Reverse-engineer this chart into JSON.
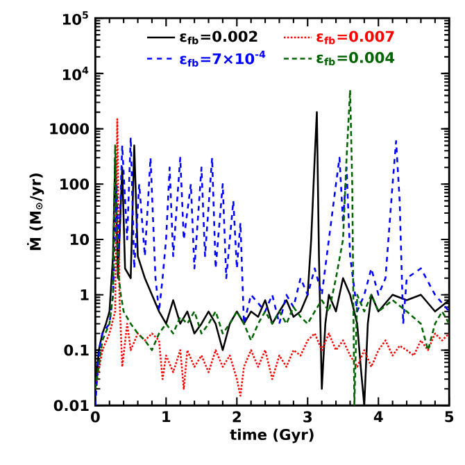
{
  "chart_data": {
    "type": "line",
    "xlabel": "time (Gyr)",
    "ylabel": "Ṁ (M$_{⊙}$/yr)",
    "log": "y",
    "xlim": [
      0,
      5
    ],
    "xticks": [
      0,
      1,
      2,
      3,
      4,
      5
    ],
    "ylim": [
      0.01,
      100000
    ],
    "yticks": [
      0.01,
      0.1,
      1,
      10,
      100,
      1000,
      {
        "value": 10000,
        "label": "10$^{4}$"
      },
      {
        "value": 100000,
        "label": "10$^{5}$"
      }
    ],
    "legend": "top",
    "series": [
      {
        "name": "ε$_{fb}$=0.002",
        "color": "#000000",
        "line_style": "solid",
        "x": [
          0,
          0.05,
          0.1,
          0.15,
          0.2,
          0.25,
          0.28,
          0.32,
          0.38,
          0.42,
          0.5,
          0.55,
          0.6,
          0.7,
          0.8,
          0.9,
          1.0,
          1.1,
          1.2,
          1.3,
          1.4,
          1.5,
          1.6,
          1.7,
          1.8,
          1.9,
          2.0,
          2.1,
          2.2,
          2.3,
          2.4,
          2.5,
          2.6,
          2.7,
          2.8,
          2.9,
          3.0,
          3.05,
          3.1,
          3.13,
          3.16,
          3.2,
          3.25,
          3.3,
          3.4,
          3.5,
          3.6,
          3.7,
          3.75,
          3.8,
          3.85,
          3.9,
          4.0,
          4.2,
          4.4,
          4.6,
          4.8,
          5.0
        ],
        "values": [
          0.02,
          0.1,
          0.2,
          0.3,
          0.5,
          5,
          300,
          2,
          200,
          3,
          2,
          500,
          5,
          2,
          1,
          0.5,
          0.3,
          0.8,
          0.3,
          0.5,
          0.2,
          0.3,
          0.5,
          0.3,
          0.1,
          0.3,
          0.5,
          0.3,
          0.5,
          0.4,
          0.8,
          0.3,
          0.5,
          0.8,
          0.4,
          0.5,
          1,
          10,
          300,
          2000,
          5,
          0.02,
          0.3,
          1,
          0.5,
          2,
          1,
          0.3,
          0.05,
          0.01,
          0.3,
          1,
          0.5,
          1,
          0.8,
          1,
          0.5,
          0.8
        ]
      },
      {
        "name": "ε$_{fb}$=0.007",
        "color": "#ff0000",
        "line_style": "dotted",
        "x": [
          0,
          0.1,
          0.2,
          0.28,
          0.31,
          0.34,
          0.38,
          0.45,
          0.5,
          0.6,
          0.7,
          0.8,
          0.9,
          0.95,
          1.0,
          1.1,
          1.2,
          1.25,
          1.3,
          1.4,
          1.5,
          1.6,
          1.7,
          1.8,
          1.9,
          2.0,
          2.05,
          2.1,
          2.2,
          2.3,
          2.4,
          2.5,
          2.6,
          2.7,
          2.8,
          2.9,
          3.0,
          3.1,
          3.2,
          3.3,
          3.4,
          3.5,
          3.6,
          3.7,
          3.8,
          3.9,
          4.0,
          4.1,
          4.2,
          4.3,
          4.4,
          4.5,
          4.6,
          4.7,
          4.8,
          4.9,
          5.0
        ],
        "values": [
          0.02,
          0.1,
          0.2,
          0.5,
          1500,
          1,
          0.05,
          0.3,
          0.1,
          0.2,
          0.15,
          0.2,
          0.15,
          0.03,
          0.08,
          0.04,
          0.1,
          0.02,
          0.1,
          0.05,
          0.08,
          0.04,
          0.1,
          0.05,
          0.08,
          0.03,
          0.015,
          0.05,
          0.1,
          0.05,
          0.1,
          0.03,
          0.08,
          0.05,
          0.1,
          0.08,
          0.15,
          0.2,
          0.1,
          0.2,
          0.1,
          0.15,
          0.08,
          0.05,
          0.1,
          0.05,
          0.1,
          0.15,
          0.08,
          0.12,
          0.1,
          0.08,
          0.15,
          0.1,
          0.2,
          0.15,
          0.2
        ]
      },
      {
        "name": "ε$_{fb}$=7×10$^{-4}$",
        "color": "#0000ff",
        "line_style": "dashed",
        "x": [
          0,
          0.05,
          0.1,
          0.2,
          0.25,
          0.3,
          0.33,
          0.38,
          0.45,
          0.5,
          0.55,
          0.62,
          0.7,
          0.78,
          0.85,
          0.9,
          0.95,
          1.0,
          1.05,
          1.1,
          1.2,
          1.25,
          1.35,
          1.4,
          1.5,
          1.55,
          1.65,
          1.7,
          1.8,
          1.85,
          1.95,
          2.0,
          2.05,
          2.1,
          2.2,
          2.4,
          2.5,
          2.6,
          2.7,
          2.8,
          2.9,
          3.0,
          3.1,
          3.2,
          3.3,
          3.4,
          3.45,
          3.5,
          3.55,
          3.6,
          3.7,
          3.8,
          3.9,
          4.0,
          4.1,
          4.2,
          4.25,
          4.3,
          4.35,
          4.4,
          4.6,
          4.8,
          5.0
        ],
        "values": [
          0.01,
          0.1,
          0.2,
          0.3,
          1,
          100,
          5,
          500,
          10,
          700,
          3,
          100,
          5,
          300,
          2,
          0.5,
          2,
          10,
          200,
          5,
          300,
          10,
          100,
          3,
          200,
          5,
          300,
          3,
          100,
          2,
          50,
          3,
          20,
          0.3,
          1,
          0.5,
          1,
          0.3,
          1,
          0.6,
          2,
          1,
          3,
          1,
          10,
          100,
          300,
          20,
          200,
          5,
          0.5,
          1,
          3,
          1,
          2,
          100,
          600,
          50,
          0.3,
          2,
          3,
          1,
          0.5
        ]
      },
      {
        "name": "ε$_{fb}$=0.004",
        "color": "#006400",
        "line_style": "dashed",
        "x": [
          0,
          0.1,
          0.2,
          0.25,
          0.28,
          0.32,
          0.36,
          0.4,
          0.5,
          0.6,
          0.7,
          0.8,
          0.9,
          1.0,
          1.1,
          1.2,
          1.3,
          1.4,
          1.5,
          1.6,
          1.7,
          1.8,
          1.9,
          2.0,
          2.1,
          2.2,
          2.3,
          2.4,
          2.5,
          2.6,
          2.7,
          2.8,
          2.9,
          3.0,
          3.1,
          3.2,
          3.3,
          3.4,
          3.5,
          3.55,
          3.6,
          3.63,
          3.66,
          3.7,
          3.8,
          3.9,
          4.0,
          4.2,
          4.4,
          4.6,
          4.7,
          4.8,
          4.9,
          5.0
        ],
        "values": [
          0.02,
          0.15,
          0.3,
          1,
          500,
          3,
          1,
          0.5,
          0.3,
          0.2,
          0.15,
          0.1,
          0.2,
          0.3,
          0.2,
          0.4,
          0.3,
          0.5,
          0.2,
          0.3,
          0.5,
          0.2,
          0.3,
          0.5,
          0.3,
          0.15,
          0.3,
          0.5,
          0.3,
          0.5,
          0.3,
          0.6,
          0.4,
          0.3,
          0.5,
          0.8,
          0.5,
          2,
          10,
          300,
          5000,
          100,
          0.01,
          1,
          0.5,
          1,
          0.5,
          0.8,
          0.5,
          0.3,
          0.1,
          0.3,
          0.5,
          0.3
        ]
      }
    ]
  }
}
